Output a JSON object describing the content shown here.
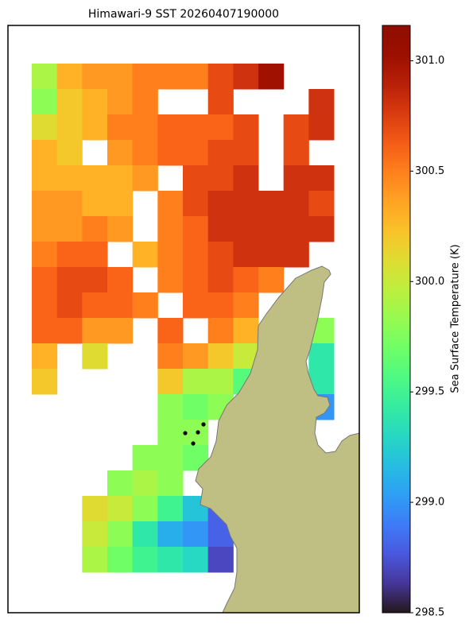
{
  "chart_data": {
    "type": "heatmap",
    "title": "Himawari-9 SST 20260407190000",
    "colorbar_label": "Sea Surface Temperature (K)",
    "colormap": "turbo",
    "zlim": [
      298.5,
      301.16
    ],
    "zticks": [
      298.5,
      {
        "value": 299,
        "label": "299.0"
      },
      299.5,
      {
        "value": 300,
        "label": "300.0"
      },
      300.5,
      {
        "value": 301,
        "label": "301.0"
      }
    ],
    "z": [
      [
        299.9,
        300.3,
        300.4,
        300.4,
        300.5,
        300.5,
        300.5,
        300.7,
        300.8,
        301.0,
        null,
        null
      ],
      [
        299.8,
        300.2,
        300.3,
        300.4,
        300.5,
        null,
        null,
        300.7,
        null,
        null,
        null,
        300.8
      ],
      [
        300.1,
        300.2,
        300.3,
        300.5,
        300.5,
        300.6,
        300.6,
        300.6,
        300.7,
        null,
        300.7,
        300.8
      ],
      [
        300.3,
        300.2,
        null,
        300.4,
        300.5,
        300.6,
        300.6,
        300.7,
        300.7,
        null,
        300.7,
        null
      ],
      [
        300.3,
        300.3,
        300.3,
        300.3,
        300.4,
        null,
        300.7,
        300.7,
        300.8,
        null,
        300.8,
        300.8
      ],
      [
        300.4,
        300.4,
        300.3,
        300.3,
        null,
        300.5,
        300.7,
        300.8,
        300.8,
        300.8,
        300.8,
        300.7
      ],
      [
        300.4,
        300.4,
        300.5,
        300.4,
        null,
        300.5,
        300.6,
        300.8,
        300.8,
        300.8,
        300.8,
        300.8
      ],
      [
        300.5,
        300.6,
        300.6,
        null,
        300.3,
        300.5,
        300.6,
        300.7,
        300.8,
        300.8,
        300.8,
        null
      ],
      [
        300.6,
        300.7,
        300.7,
        300.6,
        null,
        300.5,
        300.6,
        300.7,
        300.6,
        300.5,
        null,
        null
      ],
      [
        300.6,
        300.7,
        300.6,
        300.6,
        300.5,
        null,
        300.6,
        300.6,
        300.5,
        null,
        null,
        null
      ],
      [
        300.6,
        300.6,
        300.4,
        300.4,
        null,
        300.6,
        null,
        300.5,
        300.3,
        null,
        null,
        299.8
      ],
      [
        300.3,
        null,
        300.1,
        null,
        null,
        300.5,
        300.4,
        300.2,
        300.0,
        null,
        null,
        299.4
      ],
      [
        300.2,
        null,
        null,
        null,
        null,
        300.2,
        299.9,
        299.9,
        299.6,
        null,
        null,
        299.4
      ],
      [
        null,
        null,
        null,
        null,
        null,
        299.8,
        299.7,
        299.8,
        null,
        null,
        null,
        299.0
      ],
      [
        null,
        null,
        null,
        null,
        null,
        299.8,
        299.8,
        null,
        null,
        null,
        null,
        null
      ],
      [
        null,
        null,
        null,
        null,
        299.8,
        299.8,
        299.7,
        null,
        null,
        null,
        null,
        null
      ],
      [
        null,
        null,
        null,
        299.8,
        299.9,
        299.8,
        null,
        null,
        null,
        null,
        null,
        null
      ],
      [
        null,
        null,
        300.1,
        300.0,
        299.8,
        299.5,
        299.2,
        298.8,
        null,
        null,
        null,
        null
      ],
      [
        null,
        null,
        300.0,
        299.8,
        299.4,
        299.1,
        299.0,
        298.8,
        null,
        null,
        null,
        null
      ],
      [
        null,
        null,
        299.9,
        299.7,
        299.5,
        299.4,
        299.3,
        298.7,
        null,
        null,
        null,
        null
      ]
    ]
  }
}
